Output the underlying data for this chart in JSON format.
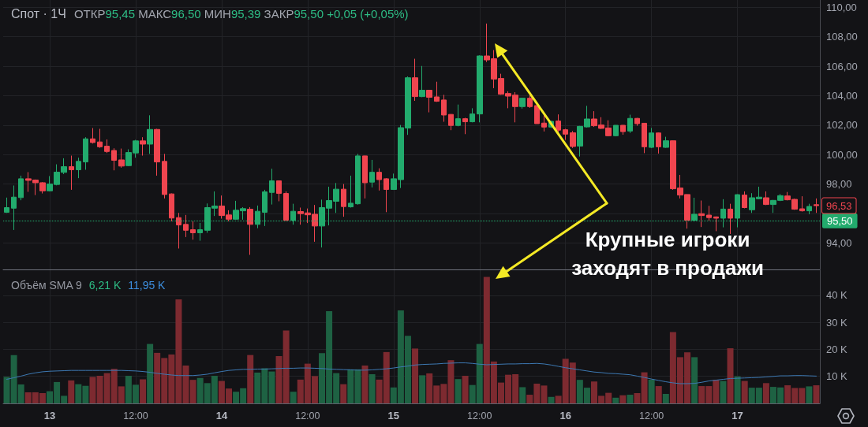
{
  "chart_data": [
    {
      "type": "candlestick",
      "title": "Спот · 1Ч",
      "subtitle": "ОТКР95,45 МАКС96,50 МИН95,39 ЗАКР95,50 +0,05 (+0,05%)",
      "categories": [
        null,
        null,
        null,
        null,
        null,
        null,
        null,
        null,
        null,
        null,
        null,
        null,
        null,
        null,
        null,
        null,
        null,
        null,
        null,
        null,
        null,
        null,
        null,
        null,
        null,
        null,
        null,
        null,
        null,
        null,
        null,
        null,
        null,
        null,
        null,
        null,
        null,
        null,
        null,
        null,
        null,
        null,
        null,
        null,
        null,
        null,
        null,
        null,
        null,
        null,
        null,
        null,
        null,
        null,
        null,
        null,
        null,
        null,
        null,
        null,
        null,
        null,
        null,
        null,
        null,
        null,
        null,
        null,
        null,
        null,
        null,
        null,
        null,
        null,
        null,
        null,
        null,
        null,
        null,
        null,
        null,
        null,
        null,
        null,
        null,
        null,
        null,
        null,
        null,
        null,
        null,
        null,
        null,
        null,
        null,
        null,
        null,
        null,
        null,
        null,
        null,
        null,
        null,
        null,
        null,
        null,
        null,
        null,
        null,
        null,
        null,
        null,
        null,
        null
      ],
      "ohlc": [
        [
          96.08,
          97.08,
          96.04,
          96.4
        ],
        [
          96.36,
          97.9,
          94.88,
          97.11
        ],
        [
          97.08,
          98.57,
          96.9,
          98.36
        ],
        [
          98.36,
          98.81,
          97.47,
          98.25
        ],
        [
          98.27,
          98.31,
          97.25,
          98.09
        ],
        [
          98.09,
          98.13,
          97.36,
          97.54
        ],
        [
          97.54,
          98.54,
          97.5,
          98.0
        ],
        [
          97.97,
          99.34,
          97.91,
          98.81
        ],
        [
          98.79,
          99.75,
          98.68,
          99.18
        ],
        [
          99.18,
          99.93,
          97.61,
          98.97
        ],
        [
          98.97,
          99.79,
          98.4,
          99.54
        ],
        [
          99.5,
          101.18,
          98.97,
          101.07
        ],
        [
          101.07,
          101.8,
          100.75,
          100.82
        ],
        [
          100.86,
          101.75,
          100.46,
          100.53
        ],
        [
          100.57,
          101.03,
          100.11,
          100.21
        ],
        [
          100.28,
          100.43,
          98.93,
          99.61
        ],
        [
          99.64,
          100.41,
          99.11,
          99.22
        ],
        [
          99.25,
          100.36,
          99.22,
          100.14
        ],
        [
          100.11,
          101.0,
          99.79,
          100.93
        ],
        [
          100.93,
          101.18,
          99.93,
          100.71
        ],
        [
          100.71,
          102.67,
          100.05,
          101.71
        ],
        [
          101.71,
          101.75,
          98.57,
          99.5
        ],
        [
          99.54,
          100.05,
          97.02,
          97.29
        ],
        [
          97.33,
          97.36,
          95.47,
          95.69
        ],
        [
          95.72,
          96.04,
          93.62,
          95.22
        ],
        [
          95.26,
          95.9,
          94.4,
          94.86
        ],
        [
          94.9,
          95.47,
          94.22,
          94.69
        ],
        [
          94.69,
          95.36,
          94.15,
          94.9
        ],
        [
          94.86,
          96.68,
          94.69,
          96.4
        ],
        [
          96.36,
          97.5,
          95.83,
          96.51
        ],
        [
          96.51,
          97.22,
          95.65,
          95.86
        ],
        [
          95.9,
          96.22,
          95.47,
          95.61
        ],
        [
          95.61,
          96.86,
          95.58,
          96.22
        ],
        [
          96.18,
          96.43,
          95.58,
          96.33
        ],
        [
          96.29,
          96.43,
          93.19,
          95.26
        ],
        [
          95.26,
          96.54,
          95.0,
          96.15
        ],
        [
          96.08,
          97.61,
          95.15,
          97.47
        ],
        [
          97.43,
          99.04,
          96.61,
          98.22
        ],
        [
          98.22,
          98.25,
          96.83,
          97.36
        ],
        [
          97.36,
          97.5,
          95.45,
          95.54
        ],
        [
          95.54,
          96.66,
          95.24,
          96.15
        ],
        [
          96.13,
          96.4,
          95.24,
          95.99
        ],
        [
          96.04,
          96.34,
          95.35,
          95.91
        ],
        [
          95.95,
          96.58,
          94.08,
          95.15
        ],
        [
          95.15,
          96.94,
          93.69,
          96.4
        ],
        [
          96.36,
          97.82,
          95.19,
          96.88
        ],
        [
          96.83,
          98.07,
          96.04,
          97.65
        ],
        [
          97.65,
          98.0,
          95.78,
          96.47
        ],
        [
          96.45,
          98.57,
          96.4,
          96.7
        ],
        [
          96.66,
          100.05,
          96.6,
          99.91
        ],
        [
          99.91,
          99.93,
          97.02,
          98.09
        ],
        [
          98.13,
          99.64,
          97.77,
          98.8
        ],
        [
          98.8,
          99.07,
          97.56,
          98.3
        ],
        [
          98.36,
          98.4,
          96.09,
          97.63
        ],
        [
          97.63,
          98.71,
          97.6,
          98.36
        ],
        [
          98.3,
          102.01,
          97.73,
          101.83
        ],
        [
          101.8,
          105.31,
          101.34,
          105.22
        ],
        [
          105.22,
          106.51,
          103.65,
          103.94
        ],
        [
          103.94,
          106.02,
          103.9,
          104.37
        ],
        [
          104.37,
          104.4,
          102.87,
          103.89
        ],
        [
          103.92,
          104.95,
          103.58,
          103.62
        ],
        [
          103.71,
          104.06,
          102.23,
          102.69
        ],
        [
          102.73,
          102.75,
          101.66,
          101.98
        ],
        [
          101.98,
          103.4,
          101.92,
          102.44
        ],
        [
          102.44,
          102.5,
          101.39,
          102.23
        ],
        [
          102.23,
          103.15,
          102.19,
          102.76
        ],
        [
          102.76,
          106.74,
          102.19,
          106.7
        ],
        [
          106.7,
          108.9,
          106.29,
          106.43
        ],
        [
          106.51,
          107.1,
          104.51,
          105.13
        ],
        [
          105.17,
          105.49,
          104.06,
          104.1
        ],
        [
          104.15,
          104.3,
          103.15,
          103.97
        ],
        [
          104.04,
          104.24,
          102.19,
          103.26
        ],
        [
          103.26,
          103.85,
          103.12,
          103.83
        ],
        [
          103.83,
          104.05,
          103.17,
          103.26
        ],
        [
          103.33,
          103.35,
          102.1,
          102.1
        ],
        [
          102.14,
          102.73,
          101.57,
          101.87
        ],
        [
          101.87,
          102.3,
          101.8,
          102.26
        ],
        [
          102.28,
          102.73,
          101.5,
          101.66
        ],
        [
          101.69,
          101.75,
          101.0,
          101.39
        ],
        [
          101.48,
          101.6,
          100.45,
          100.55
        ],
        [
          100.58,
          101.95,
          99.87,
          101.92
        ],
        [
          101.88,
          103.31,
          101.83,
          102.42
        ],
        [
          102.42,
          102.95,
          101.88,
          101.96
        ],
        [
          102.01,
          102.54,
          101.74,
          101.78
        ],
        [
          101.81,
          102.33,
          101.24,
          101.28
        ],
        [
          101.28,
          102.0,
          101.24,
          101.99
        ],
        [
          101.99,
          102.01,
          101.35,
          101.56
        ],
        [
          101.6,
          102.71,
          101.47,
          102.46
        ],
        [
          102.46,
          102.49,
          101.96,
          102.1
        ],
        [
          102.13,
          102.15,
          100.1,
          100.53
        ],
        [
          100.49,
          101.81,
          100.45,
          101.47
        ],
        [
          101.47,
          101.5,
          100.07,
          100.53
        ],
        [
          100.49,
          101.21,
          100.46,
          100.94
        ],
        [
          100.94,
          100.96,
          97.61,
          97.68
        ],
        [
          97.73,
          98.62,
          97.02,
          97.25
        ],
        [
          97.29,
          97.3,
          94.97,
          95.54
        ],
        [
          95.54,
          97.07,
          95.5,
          95.95
        ],
        [
          95.99,
          96.88,
          95.08,
          95.86
        ],
        [
          95.89,
          96.52,
          95.5,
          95.72
        ],
        [
          95.77,
          95.8,
          94.8,
          95.68
        ],
        [
          95.68,
          96.97,
          95.06,
          96.3
        ],
        [
          96.3,
          96.66,
          94.61,
          95.68
        ],
        [
          95.68,
          97.3,
          95.06,
          97.28
        ],
        [
          97.25,
          97.5,
          96.35,
          96.4
        ],
        [
          96.25,
          97.38,
          96.04,
          97.07
        ],
        [
          97.0,
          97.82,
          96.96,
          97.11
        ],
        [
          97.07,
          97.5,
          96.57,
          96.61
        ],
        [
          96.61,
          96.92,
          96.04,
          96.89
        ],
        [
          96.89,
          97.32,
          96.84,
          97.21
        ],
        [
          97.19,
          97.46,
          96.89,
          96.93
        ],
        [
          96.96,
          97.0,
          96.25,
          96.29
        ],
        [
          96.32,
          97.17,
          96.13,
          96.18
        ],
        [
          96.18,
          96.66,
          95.95,
          96.48
        ],
        [
          96.6,
          97.02,
          96.04,
          96.53
        ]
      ],
      "colors": [
        "#22ab6d",
        "#22ab6d",
        "#22ab6d",
        "#f0454f",
        "#f0454f",
        "#f0454f",
        "#22ab6d",
        "#22ab6d",
        "#22ab6d",
        "#f0454f",
        "#22ab6d",
        "#22ab6d",
        "#f0454f",
        "#f0454f",
        "#f0454f",
        "#f0454f",
        "#f0454f",
        "#22ab6d",
        "#22ab6d",
        "#f0454f",
        "#22ab6d",
        "#f0454f",
        "#f0454f",
        "#f0454f",
        "#f0454f",
        "#f0454f",
        "#f0454f",
        "#22ab6d",
        "#22ab6d",
        "#22ab6d",
        "#f0454f",
        "#f0454f",
        "#22ab6d",
        "#22ab6d",
        "#f0454f",
        "#22ab6d",
        "#22ab6d",
        "#22ab6d",
        "#f0454f",
        "#f0454f",
        "#22ab6d",
        "#f0454f",
        "#f0454f",
        "#f0454f",
        "#22ab6d",
        "#22ab6d",
        "#22ab6d",
        "#f0454f",
        "#22ab6d",
        "#22ab6d",
        "#f0454f",
        "#22ab6d",
        "#f0454f",
        "#f0454f",
        "#22ab6d",
        "#22ab6d",
        "#22ab6d",
        "#f0454f",
        "#22ab6d",
        "#f0454f",
        "#f0454f",
        "#f0454f",
        "#f0454f",
        "#22ab6d",
        "#f0454f",
        "#22ab6d",
        "#22ab6d",
        "#f0454f",
        "#f0454f",
        "#f0454f",
        "#f0454f",
        "#f0454f",
        "#22ab6d",
        "#f0454f",
        "#f0454f",
        "#f0454f",
        "#22ab6d",
        "#f0454f",
        "#f0454f",
        "#f0454f",
        "#22ab6d",
        "#22ab6d",
        "#f0454f",
        "#f0454f",
        "#f0454f",
        "#22ab6d",
        "#f0454f",
        "#22ab6d",
        "#f0454f",
        "#f0454f",
        "#22ab6d",
        "#f0454f",
        "#22ab6d",
        "#f0454f",
        "#f0454f",
        "#f0454f",
        "#22ab6d",
        "#f0454f",
        "#f0454f",
        "#f0454f",
        "#22ab6d",
        "#f0454f",
        "#22ab6d",
        "#f0454f",
        "#22ab6d",
        "#22ab6d",
        "#f0454f",
        "#22ab6d",
        "#22ab6d",
        "#f0454f",
        "#f0454f",
        "#f0454f",
        "#22ab6d",
        "#f0454f"
      ],
      "ylim": [
        92.2,
        110.5
      ],
      "yticks": [
        {
          "value": 94,
          "label": "94,00"
        },
        {
          "value": 96,
          "label": null
        },
        {
          "value": 98,
          "label": "98,00"
        },
        {
          "value": 100,
          "label": "100,00"
        },
        {
          "value": 102,
          "label": "102,00"
        },
        {
          "value": 104,
          "label": "104,00"
        },
        {
          "value": 106,
          "label": "106,00"
        },
        {
          "value": 108,
          "label": "108,00"
        },
        {
          "value": 110,
          "label": "110,00"
        }
      ],
      "grid": true,
      "tick_labels": "y",
      "ref_lines": [
        {
          "axis": "y",
          "value": 95.5,
          "label": "95,50",
          "color": "#22ab6d",
          "line_style": "dotted"
        }
      ],
      "annotations": [
        {
          "text": "96,53",
          "y": 96.53
        },
        "Крупные игроки заходят в продажи"
      ]
    },
    {
      "type": "bar",
      "title": "Объём SMA 9",
      "categories": [
        null,
        null,
        null,
        null,
        null,
        null,
        "13",
        null,
        null,
        null,
        null,
        null,
        null,
        null,
        null,
        null,
        null,
        null,
        "12:00",
        null,
        null,
        null,
        null,
        null,
        null,
        null,
        null,
        null,
        null,
        null,
        "14",
        null,
        null,
        null,
        null,
        null,
        null,
        null,
        null,
        null,
        null,
        null,
        "12:00",
        null,
        null,
        null,
        null,
        null,
        null,
        null,
        null,
        null,
        null,
        null,
        "15",
        null,
        null,
        null,
        null,
        null,
        null,
        null,
        null,
        null,
        null,
        null,
        "12:00",
        null,
        null,
        null,
        null,
        null,
        null,
        null,
        null,
        null,
        null,
        null,
        "16",
        null,
        null,
        null,
        null,
        null,
        null,
        null,
        null,
        null,
        null,
        null,
        "12:00",
        null,
        null,
        null,
        null,
        null,
        null,
        null,
        null,
        null,
        null,
        null,
        "17",
        null,
        null,
        null,
        null,
        null,
        null,
        null,
        null,
        null,
        null,
        null
      ],
      "series": [
        {
          "values": [
            9.8,
            17.9,
            7.0,
            4.1,
            4.1,
            3.8,
            4.5,
            7.9,
            2.8,
            8.5,
            7.1,
            6.5,
            9.8,
            10.2,
            11.2,
            12.8,
            6.3,
            10.2,
            6.9,
            8.9,
            22.0,
            18.7,
            16.8,
            18.1,
            38.5,
            14.0,
            8.7,
            9.4,
            7.5,
            10.2,
            8.3,
            5.5,
            4.3,
            5.6,
            17.9,
            11.4,
            13.0,
            11.8,
            17.5,
            27.0,
            4.3,
            8.8,
            14.7,
            10.1,
            18.6,
            34.1,
            11.2,
            7.1,
            12.6,
            12.6,
            14.0,
            10.8,
            8.8,
            19.0,
            5.9,
            34.4,
            25.0,
            20.3,
            10.4,
            11.1,
            6.6,
            7.2,
            16.0,
            9.0,
            10.2,
            6.8,
            22.0,
            46.8,
            15.5,
            7.7,
            10.6,
            10.8,
            6.0,
            3.2,
            7.3,
            6.6,
            2.4,
            2.8,
            16.5,
            15.1,
            8.7,
            5.8,
            8.1,
            2.8,
            3.9,
            2.1,
            3.0,
            3.2,
            3.8,
            11.5,
            8.8,
            6.4,
            3.5,
            26.4,
            17.1,
            18.9,
            17.1,
            6.4,
            6.4,
            8.7,
            8.3,
            20.4,
            10.0,
            8.3,
            5.8,
            5.8,
            7.5,
            6.1,
            5.9,
            6.7,
            5.7,
            5.7,
            6.3,
            6.7
          ],
          "colors": [
            "#1e6243",
            "#1e6243",
            "#1e6243",
            "#7d2a30",
            "#7d2a30",
            "#7d2a30",
            "#1e6243",
            "#1e6243",
            "#1e6243",
            "#7d2a30",
            "#1e6243",
            "#1e6243",
            "#7d2a30",
            "#7d2a30",
            "#7d2a30",
            "#7d2a30",
            "#7d2a30",
            "#1e6243",
            "#1e6243",
            "#7d2a30",
            "#1e6243",
            "#7d2a30",
            "#7d2a30",
            "#7d2a30",
            "#7d2a30",
            "#7d2a30",
            "#7d2a30",
            "#1e6243",
            "#1e6243",
            "#1e6243",
            "#7d2a30",
            "#7d2a30",
            "#1e6243",
            "#1e6243",
            "#7d2a30",
            "#1e6243",
            "#1e6243",
            "#1e6243",
            "#7d2a30",
            "#7d2a30",
            "#1e6243",
            "#7d2a30",
            "#7d2a30",
            "#7d2a30",
            "#1e6243",
            "#1e6243",
            "#1e6243",
            "#7d2a30",
            "#1e6243",
            "#1e6243",
            "#7d2a30",
            "#1e6243",
            "#7d2a30",
            "#7d2a30",
            "#1e6243",
            "#1e6243",
            "#1e6243",
            "#7d2a30",
            "#1e6243",
            "#7d2a30",
            "#7d2a30",
            "#7d2a30",
            "#7d2a30",
            "#1e6243",
            "#7d2a30",
            "#1e6243",
            "#1e6243",
            "#7d2a30",
            "#7d2a30",
            "#7d2a30",
            "#7d2a30",
            "#7d2a30",
            "#1e6243",
            "#7d2a30",
            "#7d2a30",
            "#7d2a30",
            "#1e6243",
            "#7d2a30",
            "#7d2a30",
            "#7d2a30",
            "#1e6243",
            "#1e6243",
            "#7d2a30",
            "#7d2a30",
            "#7d2a30",
            "#1e6243",
            "#7d2a30",
            "#1e6243",
            "#7d2a30",
            "#7d2a30",
            "#1e6243",
            "#7d2a30",
            "#1e6243",
            "#7d2a30",
            "#7d2a30",
            "#7d2a30",
            "#1e6243",
            "#7d2a30",
            "#7d2a30",
            "#7d2a30",
            "#1e6243",
            "#7d2a30",
            "#1e6243",
            "#7d2a30",
            "#1e6243",
            "#1e6243",
            "#7d2a30",
            "#1e6243",
            "#1e6243",
            "#7d2a30",
            "#7d2a30",
            "#7d2a30",
            "#1e6243",
            "#7d2a30"
          ]
        },
        {
          "type": "line",
          "color": "#3d79b3",
          "marker": "none",
          "values": [
            8.9,
            9.5,
            10.1,
            10.8,
            11.3,
            11.7,
            11.9,
            12.0,
            12.1,
            12.2,
            12.2,
            12.2,
            12.2,
            12.2,
            12.2,
            12.2,
            12.2,
            12.1,
            12.0,
            11.8,
            11.5,
            11.1,
            10.8,
            10.5,
            10.3,
            10.3,
            10.3,
            10.5,
            10.8,
            11.3,
            11.8,
            12.2,
            12.4,
            12.6,
            12.6,
            12.7,
            12.7,
            12.8,
            12.9,
            13.0,
            13.0,
            13.1,
            13.1,
            13.0,
            12.9,
            12.7,
            12.6,
            12.5,
            12.4,
            12.3,
            12.3,
            12.4,
            12.6,
            12.8,
            13.1,
            13.5,
            13.8,
            14.2,
            14.4,
            14.5,
            14.6,
            14.8,
            14.9,
            15.0,
            15.0,
            14.8,
            14.5,
            14.3,
            14.4,
            14.5,
            14.6,
            14.6,
            14.7,
            14.7,
            14.8,
            14.6,
            14.2,
            13.7,
            13.2,
            12.8,
            12.4,
            12.0,
            11.6,
            11.4,
            11.1,
            11.0,
            10.8,
            10.6,
            10.1,
            9.6,
            9.0,
            8.5,
            8.0,
            7.6,
            7.3,
            7.3,
            7.4,
            7.8,
            8.3,
            8.6,
            8.9,
            9.2,
            9.3,
            9.4,
            9.5,
            9.6,
            9.8,
            10.0,
            10.2,
            10.2,
            10.3,
            10.3,
            10.2,
            10.1
          ]
        }
      ],
      "ylim": [
        0,
        49.3
      ],
      "yticks": [
        {
          "value": 10,
          "label": "10 K"
        },
        {
          "value": 20,
          "label": "20 K"
        },
        {
          "value": 30,
          "label": "30 K"
        },
        {
          "value": 40,
          "label": "40 K"
        }
      ],
      "grid": true,
      "annotations": [
        "6,21 K",
        "11,95 K"
      ]
    }
  ]
}
